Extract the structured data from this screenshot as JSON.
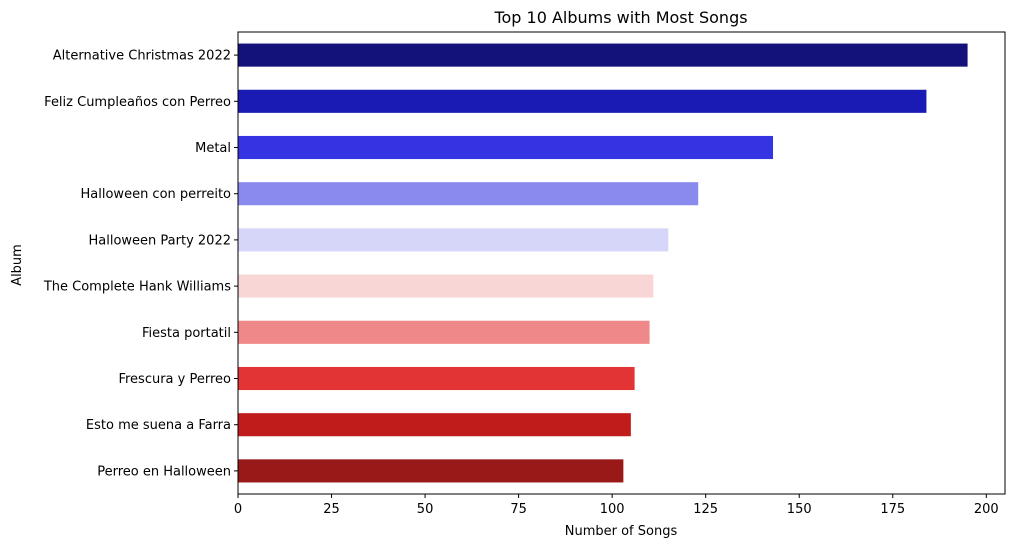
{
  "chart_data": {
    "type": "bar",
    "orientation": "horizontal",
    "title": "Top 10 Albums with Most Songs",
    "xlabel": "Number of Songs",
    "ylabel": "Album",
    "xlim": [
      0,
      205
    ],
    "xticks": [
      0,
      25,
      50,
      75,
      100,
      125,
      150,
      175,
      200
    ],
    "grid": false,
    "categories": [
      "Alternative Christmas 2022",
      "Feliz Cumpleaños con Perreo",
      "Metal",
      "Halloween con perreito",
      "Halloween Party 2022",
      "The Complete Hank Williams",
      "Fiesta portatil",
      "Frescura y Perreo",
      "Esto me suena a Farra",
      "Perreo en Halloween"
    ],
    "values": [
      195,
      184,
      143,
      123,
      115,
      111,
      110,
      106,
      105,
      103
    ],
    "colors": [
      "#12127a",
      "#1a1ab5",
      "#3434e2",
      "#8a8aee",
      "#d6d6f8",
      "#f8d6d6",
      "#ef8888",
      "#e23434",
      "#c01c1c",
      "#991818"
    ]
  }
}
